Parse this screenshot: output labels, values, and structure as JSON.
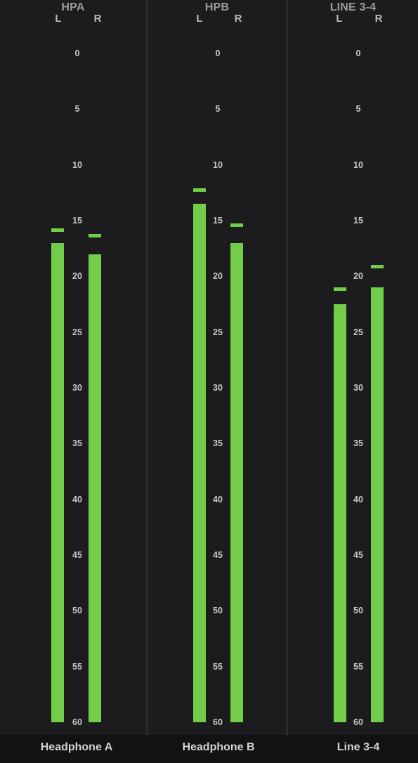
{
  "colors": {
    "background": "#1c1c1e",
    "divider": "#2c2c2e",
    "footer": "#121214",
    "meter": "#72cd4a",
    "label": "#c4c6c9"
  },
  "scale": {
    "min": 0,
    "max": 60,
    "ticks": [
      "0",
      "5",
      "10",
      "15",
      "20",
      "25",
      "30",
      "35",
      "40",
      "45",
      "50",
      "55",
      "60"
    ]
  },
  "channels": [
    {
      "key": "hpa",
      "title": "HPA",
      "name": "Headphone A",
      "left_label": "L",
      "right_label": "R",
      "left": {
        "level": 17.0,
        "peak": 15.8
      },
      "right": {
        "level": 18.0,
        "peak": 16.3
      }
    },
    {
      "key": "hpb",
      "title": "HPB",
      "name": "Headphone B",
      "left_label": "L",
      "right_label": "R",
      "left": {
        "level": 13.5,
        "peak": 12.2
      },
      "right": {
        "level": 17.0,
        "peak": 15.4
      }
    },
    {
      "key": "line34",
      "title": "LINE 3-4",
      "name": "Line 3-4",
      "left_label": "L",
      "right_label": "R",
      "left": {
        "level": 22.5,
        "peak": 21.1
      },
      "right": {
        "level": 21.0,
        "peak": 19.1
      }
    }
  ]
}
